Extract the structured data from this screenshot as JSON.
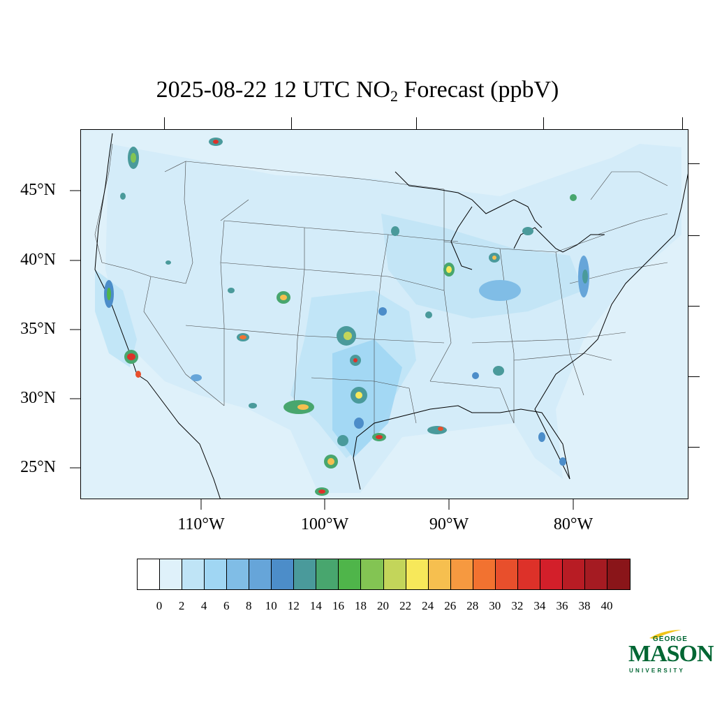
{
  "title": {
    "prefix": "2025-08-22 12 UTC NO",
    "subscript": "2",
    "suffix": " Forecast (ppbV)"
  },
  "lat_labels": [
    "45°N",
    "40°N",
    "35°N",
    "30°N",
    "25°N"
  ],
  "lon_labels": [
    "110°W",
    "100°W",
    "90°W",
    "80°W"
  ],
  "colorbar": {
    "labels": [
      "0",
      "2",
      "4",
      "6",
      "8",
      "10",
      "12",
      "14",
      "16",
      "18",
      "20",
      "22",
      "24",
      "26",
      "28",
      "30",
      "32",
      "34",
      "36",
      "38",
      "40"
    ],
    "colors": [
      "#ffffff",
      "#dff1fa",
      "#bfe4f6",
      "#a0d6f3",
      "#80bde6",
      "#66a5d9",
      "#4c8dc9",
      "#4a9a9b",
      "#48a66e",
      "#4fb54a",
      "#83c453",
      "#c3d55a",
      "#f7e85a",
      "#f6bf4f",
      "#f69940",
      "#f27230",
      "#e84f2c",
      "#dd3129",
      "#d31f2a",
      "#b81c24",
      "#a51b22",
      "#8a1519"
    ]
  },
  "logo": {
    "top": "GEORGE",
    "main": "MASON",
    "bottom": "UNIVERSITY",
    "color": "#006633",
    "accent": "#f0c419"
  },
  "map": {
    "background_color": "#dff1fa",
    "projection": "Lambert Conformal Conic over CONUS"
  }
}
